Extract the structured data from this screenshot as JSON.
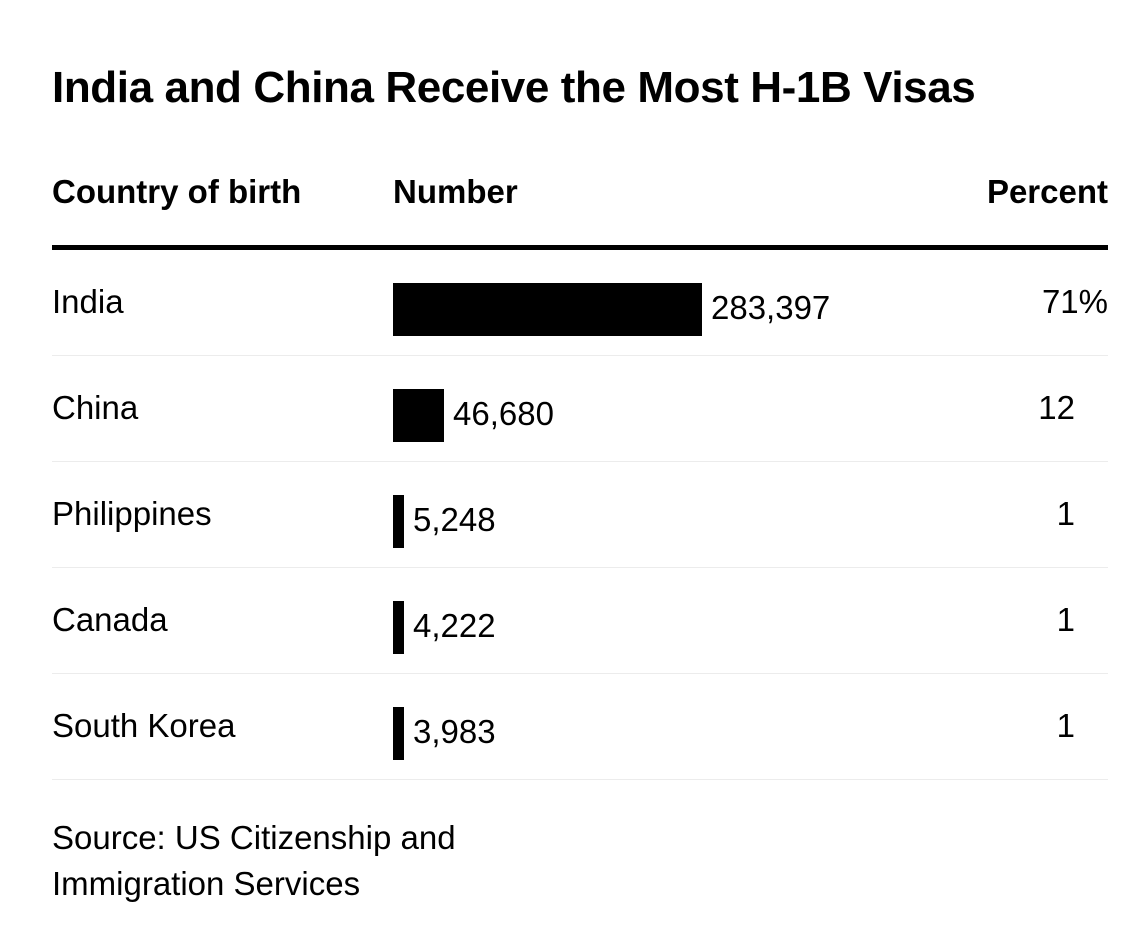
{
  "chart_data": {
    "type": "table",
    "title": "India and China Receive the Most H-1B Visas",
    "columns": [
      "Country of birth",
      "Number",
      "Percent"
    ],
    "rows": [
      {
        "country": "India",
        "number": 283397,
        "number_label": "283,397",
        "percent": "71%"
      },
      {
        "country": "China",
        "number": 46680,
        "number_label": "46,680",
        "percent": "12"
      },
      {
        "country": "Philippines",
        "number": 5248,
        "number_label": "5,248",
        "percent": "1"
      },
      {
        "country": "Canada",
        "number": 4222,
        "number_label": "4,222",
        "percent": "1"
      },
      {
        "country": "South Korea",
        "number": 3983,
        "number_label": "3,983",
        "percent": "1"
      }
    ],
    "bar_color": "#000000"
  },
  "source": "Source: US Citizenship and Immigration Services"
}
